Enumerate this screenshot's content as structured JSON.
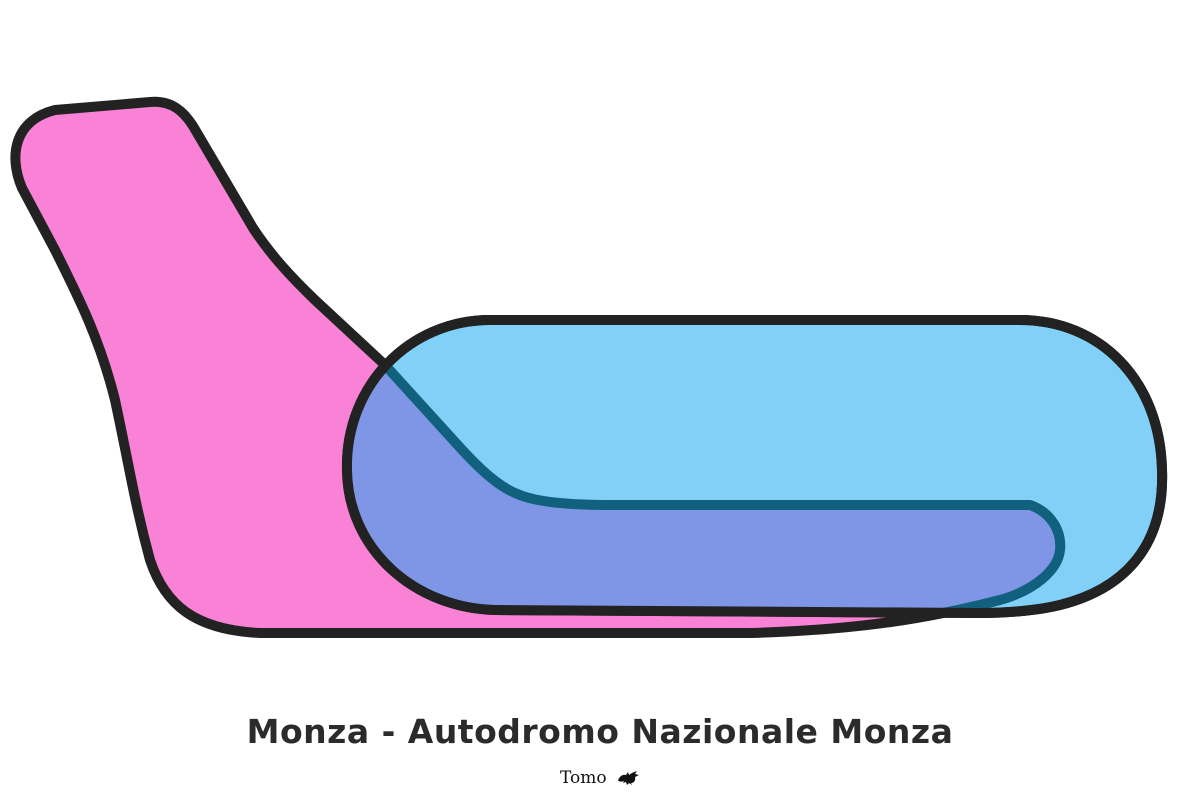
{
  "title": "Monza - Autodromo Nazionale Monza",
  "signature": {
    "text": "Tomo",
    "icon": "welsh-dragon-icon"
  },
  "colors": {
    "background": "#ffffff",
    "outline": "#222222",
    "overlap_outline": "#11607e",
    "pink_shape": "#f981d6",
    "blue_shape": "#81d0f8",
    "overlap": "#7f95e6",
    "text": "#2b2b2b"
  }
}
